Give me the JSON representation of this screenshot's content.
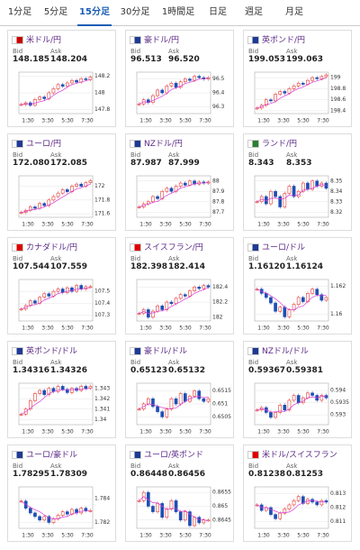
{
  "tabs": [
    "1分足",
    "5分足",
    "15分足",
    "30分足",
    "1時間足",
    "日足",
    "週足",
    "月足"
  ],
  "active_tab": 2,
  "labels": {
    "bid": "Bid",
    "ask": "Ask"
  },
  "time_labels": [
    "1:30",
    "3:30",
    "5:30",
    "7:30"
  ],
  "cards": [
    {
      "name": "米ドル/円",
      "bid": "148.185",
      "ask": "148.204",
      "ylim": [
        147.75,
        148.25
      ],
      "yticks": [
        148.2,
        148,
        147.8
      ],
      "values": [
        147.86,
        147.88,
        147.85,
        147.92,
        147.95,
        147.93,
        148.0,
        148.05,
        148.1,
        148.08,
        148.12,
        148.15,
        148.13,
        148.17,
        148.16,
        148.19
      ]
    },
    {
      "name": "豪ドル/円",
      "bid": "96.513",
      "ask": "96.520",
      "ylim": [
        96.25,
        96.55
      ],
      "yticks": [
        96.5,
        96.4,
        96.3
      ],
      "values": [
        96.32,
        96.35,
        96.33,
        96.38,
        96.42,
        96.4,
        96.45,
        96.47,
        96.44,
        96.48,
        96.5,
        96.49,
        96.52,
        96.51,
        96.5,
        96.51
      ]
    },
    {
      "name": "英ポンド/円",
      "bid": "199.053",
      "ask": "199.063",
      "ylim": [
        198.35,
        199.1
      ],
      "yticks": [
        199,
        198.8,
        198.6,
        198.4
      ],
      "values": [
        198.45,
        198.5,
        198.6,
        198.58,
        198.7,
        198.75,
        198.72,
        198.8,
        198.85,
        198.9,
        198.88,
        198.95,
        199.0,
        198.98,
        199.02,
        199.05
      ]
    },
    {
      "name": "ユーロ/円",
      "bid": "172.080",
      "ask": "172.085",
      "ylim": [
        171.55,
        172.15
      ],
      "yticks": [
        172,
        171.8,
        171.6
      ],
      "values": [
        171.62,
        171.65,
        171.7,
        171.68,
        171.75,
        171.72,
        171.8,
        171.85,
        171.9,
        171.95,
        171.92,
        172.0,
        172.03,
        172.0,
        172.05,
        172.08
      ]
    },
    {
      "name": "NZドル/円",
      "bid": "87.987",
      "ask": "87.999",
      "ylim": [
        87.65,
        88.05
      ],
      "yticks": [
        88,
        87.9,
        87.8,
        87.7
      ],
      "values": [
        87.75,
        87.78,
        87.8,
        87.85,
        87.83,
        87.9,
        87.93,
        87.9,
        87.95,
        87.98,
        87.96,
        88.0,
        87.97,
        87.99,
        87.98,
        87.99
      ]
    },
    {
      "name": "ランド/円",
      "bid": "8.343",
      "ask": "8.353",
      "ylim": [
        8.315,
        8.355
      ],
      "yticks": [
        8.35,
        8.34,
        8.33,
        8.32
      ],
      "values": [
        8.33,
        8.335,
        8.328,
        8.34,
        8.335,
        8.325,
        8.338,
        8.345,
        8.335,
        8.34,
        8.348,
        8.342,
        8.35,
        8.345,
        8.348,
        8.343
      ]
    },
    {
      "name": "カナダドル/円",
      "bid": "107.544",
      "ask": "107.559",
      "ylim": [
        107.25,
        107.6
      ],
      "yticks": [
        107.5,
        107.4,
        107.3
      ],
      "values": [
        107.35,
        107.38,
        107.42,
        107.4,
        107.45,
        107.48,
        107.46,
        107.5,
        107.52,
        107.49,
        107.53,
        107.5,
        107.55,
        107.52,
        107.54,
        107.54
      ]
    },
    {
      "name": "スイスフラン/円",
      "bid": "182.398",
      "ask": "182.414",
      "ylim": [
        181.95,
        182.5
      ],
      "yticks": [
        182.4,
        182.2,
        182
      ],
      "values": [
        182.05,
        182.1,
        182.0,
        182.08,
        182.15,
        182.1,
        182.2,
        182.18,
        182.25,
        182.3,
        182.28,
        182.35,
        182.4,
        182.38,
        182.42,
        182.4
      ]
    },
    {
      "name": "ユーロ/ドル",
      "bid": "1.16120",
      "ask": "1.16124",
      "ylim": [
        1.1595,
        1.1625
      ],
      "yticks": [
        1.162,
        1.16
      ],
      "values": [
        1.1618,
        1.1615,
        1.1612,
        1.1608,
        1.1602,
        1.1605,
        1.1598,
        1.1603,
        1.1607,
        1.1612,
        1.1609,
        1.1615,
        1.1618,
        1.1614,
        1.161,
        1.1612
      ]
    },
    {
      "name": "英ポンド/ドル",
      "bid": "1.34316",
      "ask": "1.34326",
      "ylim": [
        1.3395,
        1.3435
      ],
      "yticks": [
        1.343,
        1.342,
        1.341,
        1.34
      ],
      "values": [
        1.3405,
        1.341,
        1.3418,
        1.3425,
        1.3428,
        1.3424,
        1.343,
        1.3427,
        1.3432,
        1.3429,
        1.3426,
        1.343,
        1.3428,
        1.3432,
        1.343,
        1.3432
      ]
    },
    {
      "name": "豪ドル/ドル",
      "bid": "0.65123",
      "ask": "0.65132",
      "ylim": [
        0.6502,
        0.6518
      ],
      "yticks": [
        0.6515,
        0.651,
        0.6505
      ],
      "values": [
        0.6508,
        0.651,
        0.6512,
        0.6509,
        0.6507,
        0.6505,
        0.6508,
        0.6512,
        0.651,
        0.6514,
        0.6511,
        0.6513,
        0.6515,
        0.6512,
        0.6511,
        0.6512
      ]
    },
    {
      "name": "NZドル/ドル",
      "bid": "0.59367",
      "ask": "0.59381",
      "ylim": [
        0.5926,
        0.5943
      ],
      "yticks": [
        0.594,
        0.5935,
        0.593
      ],
      "values": [
        0.5932,
        0.5933,
        0.5931,
        0.5929,
        0.5931,
        0.5934,
        0.5932,
        0.5936,
        0.5938,
        0.5935,
        0.5937,
        0.5939,
        0.5938,
        0.5936,
        0.5938,
        0.5937
      ]
    },
    {
      "name": "ユーロ/豪ドル",
      "bid": "1.78295",
      "ask": "1.78309",
      "ylim": [
        1.7815,
        1.785
      ],
      "yticks": [
        1.784,
        1.782
      ],
      "values": [
        1.7838,
        1.7832,
        1.7828,
        1.7825,
        1.7822,
        1.7825,
        1.782,
        1.7823,
        1.7826,
        1.7829,
        1.7827,
        1.7831,
        1.7828,
        1.7832,
        1.783,
        1.783
      ]
    },
    {
      "name": "ユーロ/英ポンド",
      "bid": "0.86448",
      "ask": "0.86456",
      "ylim": [
        0.8642,
        0.8657
      ],
      "yticks": [
        0.8655,
        0.865,
        0.8645
      ],
      "values": [
        0.8652,
        0.8655,
        0.865,
        0.8648,
        0.8651,
        0.8646,
        0.8649,
        0.8652,
        0.8648,
        0.8645,
        0.8648,
        0.8643,
        0.8646,
        0.8644,
        0.8645,
        0.8645
      ]
    },
    {
      "name": "米ドル/スイスフラン",
      "bid": "0.81238",
      "ask": "0.81253",
      "ylim": [
        0.8105,
        0.8135
      ],
      "yticks": [
        0.813,
        0.812,
        0.811
      ],
      "values": [
        0.8122,
        0.8118,
        0.812,
        0.8115,
        0.8112,
        0.8116,
        0.8119,
        0.8122,
        0.8125,
        0.8128,
        0.8123,
        0.8126,
        0.8124,
        0.8122,
        0.8125,
        0.8124
      ]
    }
  ]
}
